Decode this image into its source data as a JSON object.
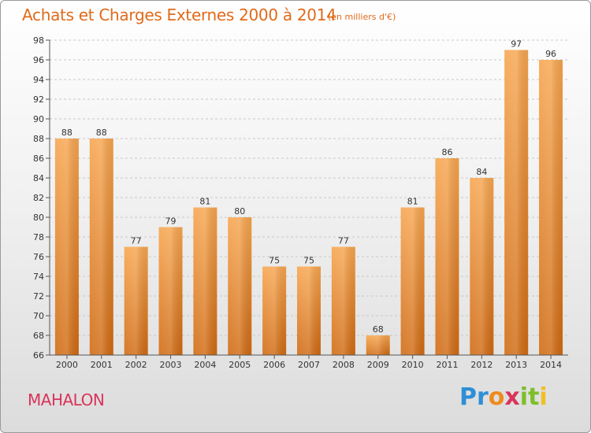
{
  "chart_data": {
    "type": "bar",
    "title": "Achats et Charges Externes 2000 à 2014",
    "subtitle": "(en milliers d'€)",
    "categories": [
      "2000",
      "2001",
      "2002",
      "2003",
      "2004",
      "2005",
      "2006",
      "2007",
      "2008",
      "2009",
      "2010",
      "2011",
      "2012",
      "2013",
      "2014"
    ],
    "values": [
      88,
      88,
      77,
      79,
      81,
      80,
      75,
      75,
      77,
      68,
      81,
      86,
      84,
      97,
      96
    ],
    "ylim": [
      66,
      98
    ],
    "yticks": [
      66,
      68,
      70,
      72,
      74,
      76,
      78,
      80,
      82,
      84,
      86,
      88,
      90,
      92,
      94,
      96,
      98
    ],
    "grid": true,
    "bar_color_top": "#f7a650",
    "bar_color_bottom": "#d06a12"
  },
  "place_name": "MAHALON",
  "logo": {
    "parts": [
      "Pr",
      "o",
      "x",
      "it",
      "i"
    ]
  },
  "colors": {
    "title": "#e06a1a",
    "place": "#d9345a"
  }
}
